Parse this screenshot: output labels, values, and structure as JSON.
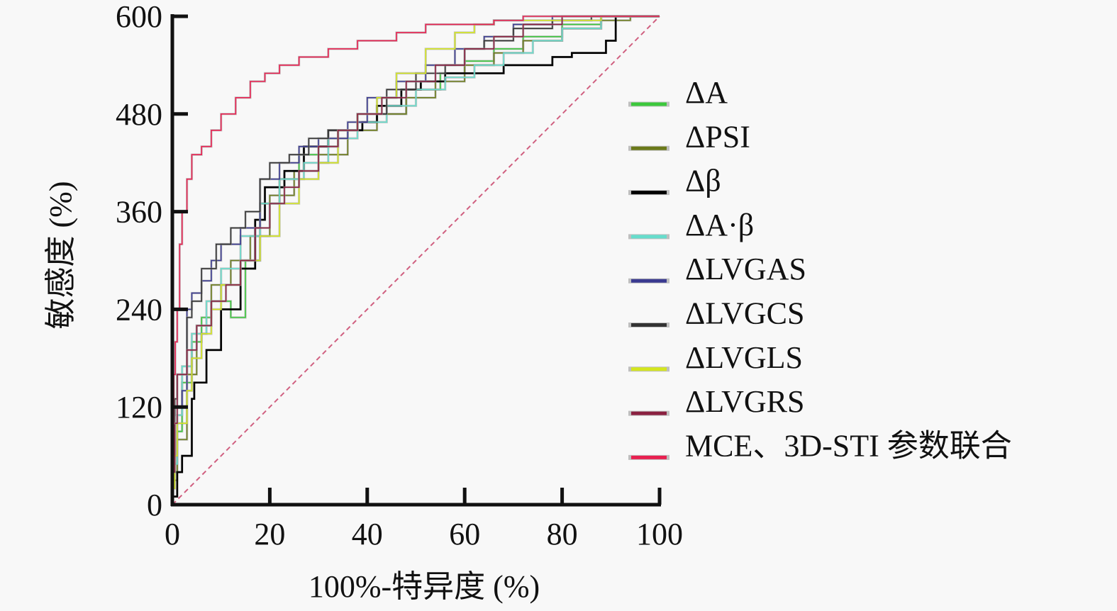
{
  "chart_data": {
    "type": "line",
    "subtype": "roc",
    "title": "",
    "xlabel": "100%-特异度 (%)",
    "ylabel": "敏感度 (%)",
    "xlim": [
      0,
      100
    ],
    "ylim": [
      0,
      600
    ],
    "x_ticks": [
      0,
      20,
      40,
      60,
      80,
      100
    ],
    "y_ticks": [
      0,
      120,
      240,
      360,
      480,
      600
    ],
    "grid": false,
    "legend_position": "right",
    "reference_line": {
      "name": "diagonal",
      "from": [
        0,
        0
      ],
      "to": [
        100,
        600
      ],
      "style": "dashed",
      "color": "#d06080"
    },
    "series": [
      {
        "name": "ΔA",
        "color": "#3cc83c",
        "points": [
          [
            0,
            0
          ],
          [
            1,
            40
          ],
          [
            2,
            90
          ],
          [
            4,
            150
          ],
          [
            6,
            200
          ],
          [
            8,
            230
          ],
          [
            12,
            250
          ],
          [
            15,
            230
          ],
          [
            18,
            300
          ],
          [
            22,
            370
          ],
          [
            26,
            400
          ],
          [
            30,
            430
          ],
          [
            34,
            440
          ],
          [
            38,
            460
          ],
          [
            42,
            470
          ],
          [
            48,
            480
          ],
          [
            55,
            510
          ],
          [
            60,
            530
          ],
          [
            66,
            545
          ],
          [
            72,
            560
          ],
          [
            80,
            575
          ],
          [
            88,
            590
          ],
          [
            100,
            600
          ]
        ]
      },
      {
        "name": "ΔPSI",
        "color": "#6b7a1a",
        "points": [
          [
            0,
            0
          ],
          [
            1,
            30
          ],
          [
            3,
            80
          ],
          [
            5,
            160
          ],
          [
            8,
            220
          ],
          [
            12,
            270
          ],
          [
            16,
            300
          ],
          [
            20,
            330
          ],
          [
            25,
            380
          ],
          [
            30,
            410
          ],
          [
            36,
            430
          ],
          [
            42,
            460
          ],
          [
            48,
            480
          ],
          [
            54,
            500
          ],
          [
            60,
            520
          ],
          [
            66,
            540
          ],
          [
            72,
            555
          ],
          [
            80,
            570
          ],
          [
            88,
            585
          ],
          [
            94,
            595
          ],
          [
            100,
            600
          ]
        ]
      },
      {
        "name": "Δβ",
        "color": "#000000",
        "points": [
          [
            0,
            0
          ],
          [
            1,
            10
          ],
          [
            2,
            40
          ],
          [
            4,
            60
          ],
          [
            4.5,
            130
          ],
          [
            7,
            150
          ],
          [
            10,
            190
          ],
          [
            14,
            240
          ],
          [
            17,
            290
          ],
          [
            19,
            350
          ],
          [
            23,
            390
          ],
          [
            27,
            410
          ],
          [
            32,
            440
          ],
          [
            36,
            460
          ],
          [
            39,
            460
          ],
          [
            42,
            470
          ],
          [
            47,
            490
          ],
          [
            51,
            510
          ],
          [
            56,
            520
          ],
          [
            60,
            530
          ],
          [
            68,
            530
          ],
          [
            72,
            540
          ],
          [
            78,
            540
          ],
          [
            82,
            550
          ],
          [
            89,
            555
          ],
          [
            91,
            570
          ],
          [
            92,
            600
          ],
          [
            100,
            600
          ]
        ]
      },
      {
        "name": "ΔA·β",
        "color": "#66ddcc",
        "points": [
          [
            0,
            0
          ],
          [
            1,
            50
          ],
          [
            2,
            110
          ],
          [
            4,
            170
          ],
          [
            7,
            210
          ],
          [
            10,
            250
          ],
          [
            14,
            290
          ],
          [
            18,
            330
          ],
          [
            22,
            370
          ],
          [
            27,
            400
          ],
          [
            32,
            420
          ],
          [
            38,
            450
          ],
          [
            44,
            470
          ],
          [
            50,
            490
          ],
          [
            56,
            510
          ],
          [
            62,
            525
          ],
          [
            68,
            540
          ],
          [
            74,
            555
          ],
          [
            80,
            570
          ],
          [
            88,
            585
          ],
          [
            100,
            600
          ]
        ]
      },
      {
        "name": "ΔLVGAS",
        "color": "#3a3a90",
        "points": [
          [
            0,
            0
          ],
          [
            0.5,
            110
          ],
          [
            2,
            120
          ],
          [
            3,
            140
          ],
          [
            4,
            240
          ],
          [
            6,
            260
          ],
          [
            8,
            275
          ],
          [
            10,
            300
          ],
          [
            14,
            320
          ],
          [
            18,
            340
          ],
          [
            22,
            400
          ],
          [
            26,
            420
          ],
          [
            30,
            440
          ],
          [
            36,
            450
          ],
          [
            40,
            470
          ],
          [
            46,
            500
          ],
          [
            52,
            520
          ],
          [
            58,
            540
          ],
          [
            64,
            560
          ],
          [
            70,
            575
          ],
          [
            78,
            590
          ],
          [
            86,
            600
          ],
          [
            100,
            600
          ]
        ]
      },
      {
        "name": "ΔLVGCS",
        "color": "#333333",
        "points": [
          [
            0,
            0
          ],
          [
            0.5,
            60
          ],
          [
            1,
            130
          ],
          [
            3,
            160
          ],
          [
            4,
            230
          ],
          [
            6,
            250
          ],
          [
            9,
            290
          ],
          [
            12,
            320
          ],
          [
            15,
            340
          ],
          [
            18,
            360
          ],
          [
            20,
            400
          ],
          [
            24,
            420
          ],
          [
            28,
            430
          ],
          [
            32,
            450
          ],
          [
            38,
            460
          ],
          [
            44,
            480
          ],
          [
            50,
            510
          ],
          [
            56,
            530
          ],
          [
            60,
            540
          ],
          [
            64,
            560
          ],
          [
            70,
            570
          ],
          [
            78,
            585
          ],
          [
            86,
            595
          ],
          [
            92,
            600
          ],
          [
            100,
            600
          ]
        ]
      },
      {
        "name": "ΔLVGLS",
        "color": "#d4e61e",
        "points": [
          [
            0,
            0
          ],
          [
            0.5,
            20
          ],
          [
            1,
            60
          ],
          [
            3,
            100
          ],
          [
            4,
            140
          ],
          [
            6,
            180
          ],
          [
            8,
            210
          ],
          [
            10,
            240
          ],
          [
            14,
            270
          ],
          [
            18,
            300
          ],
          [
            22,
            330
          ],
          [
            26,
            370
          ],
          [
            30,
            400
          ],
          [
            34,
            420
          ],
          [
            38,
            460
          ],
          [
            42,
            480
          ],
          [
            46,
            500
          ],
          [
            52,
            530
          ],
          [
            58,
            560
          ],
          [
            62,
            580
          ],
          [
            66,
            590
          ],
          [
            72,
            595
          ],
          [
            80,
            595
          ],
          [
            88,
            595
          ],
          [
            92,
            600
          ],
          [
            100,
            600
          ]
        ]
      },
      {
        "name": "ΔLVGRS",
        "color": "#8a2040",
        "points": [
          [
            0,
            0
          ],
          [
            0.5,
            40
          ],
          [
            1,
            100
          ],
          [
            3,
            160
          ],
          [
            5,
            190
          ],
          [
            8,
            220
          ],
          [
            11,
            250
          ],
          [
            14,
            270
          ],
          [
            17,
            300
          ],
          [
            20,
            340
          ],
          [
            23,
            370
          ],
          [
            26,
            390
          ],
          [
            30,
            410
          ],
          [
            34,
            440
          ],
          [
            38,
            460
          ],
          [
            43,
            480
          ],
          [
            48,
            500
          ],
          [
            54,
            520
          ],
          [
            60,
            540
          ],
          [
            66,
            560
          ],
          [
            72,
            575
          ],
          [
            80,
            590
          ],
          [
            88,
            600
          ],
          [
            100,
            600
          ]
        ]
      },
      {
        "name": "MCE、3D-STI 参数联合",
        "color": "#e82050",
        "points": [
          [
            0,
            0
          ],
          [
            0.3,
            100
          ],
          [
            0.6,
            160
          ],
          [
            1,
            200
          ],
          [
            1.5,
            240
          ],
          [
            2,
            320
          ],
          [
            3,
            360
          ],
          [
            4,
            400
          ],
          [
            6,
            430
          ],
          [
            8,
            440
          ],
          [
            10,
            460
          ],
          [
            13,
            480
          ],
          [
            16,
            500
          ],
          [
            19,
            520
          ],
          [
            22,
            530
          ],
          [
            26,
            540
          ],
          [
            32,
            550
          ],
          [
            38,
            560
          ],
          [
            46,
            570
          ],
          [
            52,
            580
          ],
          [
            58,
            590
          ],
          [
            66,
            590
          ],
          [
            72,
            595
          ],
          [
            80,
            600
          ],
          [
            100,
            600
          ]
        ]
      }
    ]
  }
}
